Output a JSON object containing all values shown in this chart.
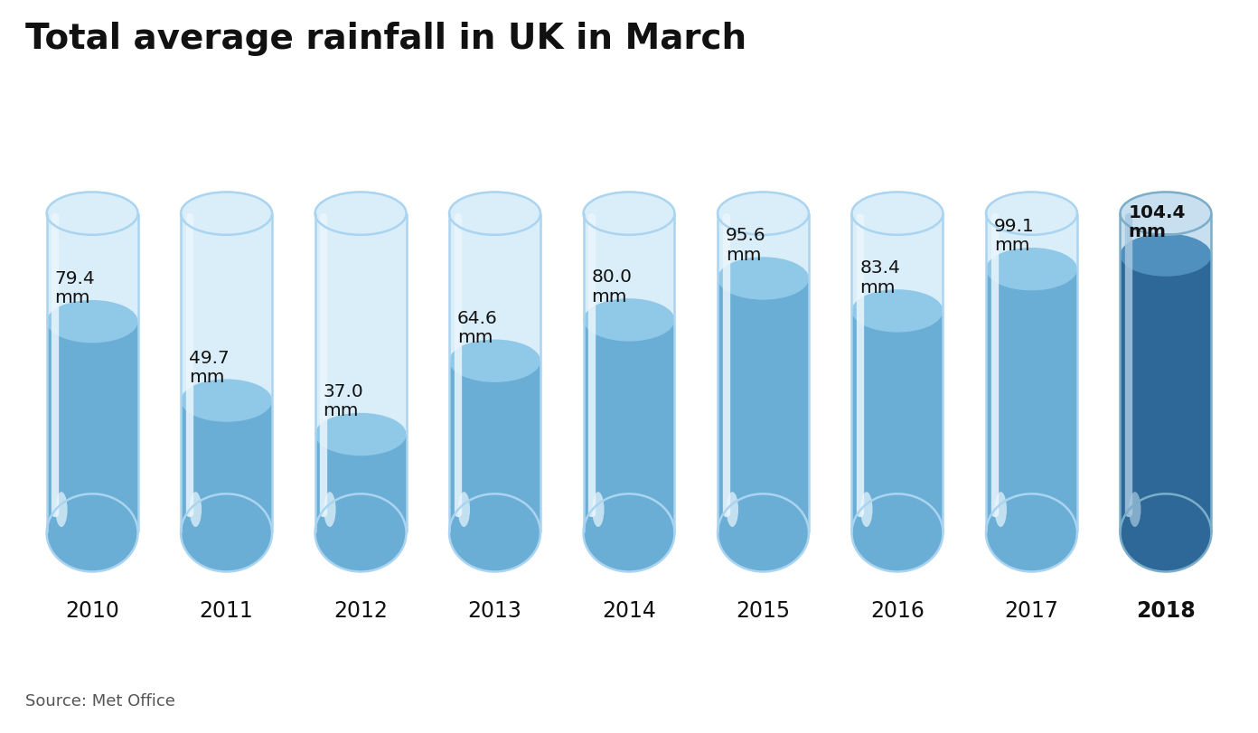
{
  "title": "Total average rainfall in UK in March",
  "source": "Source: Met Office",
  "years": [
    2010,
    2011,
    2012,
    2013,
    2014,
    2015,
    2016,
    2017,
    2018
  ],
  "values": [
    79.4,
    49.7,
    37.0,
    64.6,
    80.0,
    95.6,
    83.4,
    99.1,
    104.4
  ],
  "max_value": 120,
  "tube_bg": "#daeef9",
  "tube_bg_border": "#aad4f0",
  "tube_fill": "#6aaed6",
  "tube_fill_surface": "#90c8e8",
  "tube_highlight": "#eaf6fd",
  "tube_shadow": "#5590bb",
  "last_bg": "#c8dff0",
  "last_bg_border": "#7aaec8",
  "last_fill": "#2e6898",
  "last_fill_surface": "#5090be",
  "last_highlight": "#a8c8e0",
  "background_color": "#ffffff",
  "title_color": "#111111",
  "label_color": "#111111",
  "source_color": "#555555",
  "line_color": "#333333",
  "pa_bg_color": "#cc1f1f",
  "pa_text_color": "#ffffff"
}
